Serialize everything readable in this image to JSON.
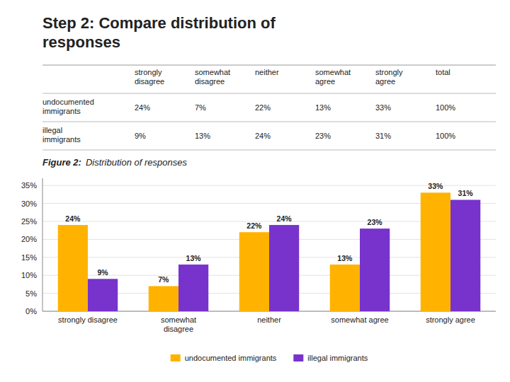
{
  "chart_data": [
    {
      "type": "table",
      "title": "Step 2: Compare distribution of\nresponses",
      "categories": [
        "strongly\ndisagree",
        "somewhat\ndisagree",
        "neither",
        "somewhat\nagree",
        "strongly\nagree",
        "total"
      ],
      "series": [
        {
          "name": "undocumented\nimmigrants",
          "values": [
            24,
            7,
            22,
            13,
            33,
            100
          ],
          "value_labels": [
            "24%",
            "7%",
            "22%",
            "13%",
            "33%",
            "100%"
          ]
        },
        {
          "name": "illegal\nimmigrants",
          "values": [
            9,
            13,
            24,
            23,
            31,
            100
          ],
          "value_labels": [
            "9%",
            "13%",
            "24%",
            "23%",
            "31%",
            "100%"
          ]
        }
      ]
    },
    {
      "type": "bar",
      "annotations": [
        "Figure 2:",
        "Distribution of responses"
      ],
      "categories": [
        "strongly disagree",
        "somewhat\ndisagree",
        "neither",
        "somewhat agree",
        "strongly agree"
      ],
      "series": [
        {
          "name": "undocumented immigrants",
          "color": "#FFB300",
          "values": [
            24,
            7,
            22,
            13,
            33
          ],
          "value_labels": [
            "24%",
            "7%",
            "22%",
            "13%",
            "33%"
          ]
        },
        {
          "name": "illegal immigrants",
          "color": "#7733CC",
          "values": [
            9,
            13,
            24,
            23,
            31
          ],
          "value_labels": [
            "9%",
            "13%",
            "24%",
            "23%",
            "31%"
          ]
        }
      ],
      "ylim": [
        0,
        37
      ],
      "yticks": [
        {
          "value": 0,
          "label": "0%"
        },
        {
          "value": 5,
          "label": "5%"
        },
        {
          "value": 10,
          "label": "10%"
        },
        {
          "value": 15,
          "label": "15%"
        },
        {
          "value": 20,
          "label": "20%"
        },
        {
          "value": 25,
          "label": "25%"
        },
        {
          "value": 30,
          "label": "30%"
        },
        {
          "value": 35,
          "label": "35%"
        }
      ],
      "grid": true,
      "legend": "bottom",
      "data_labels": true
    }
  ]
}
